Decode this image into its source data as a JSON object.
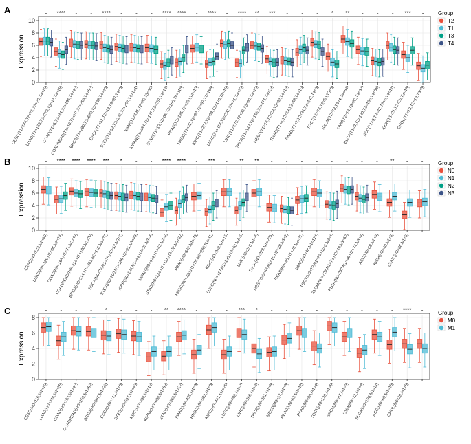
{
  "chart_data": [
    {
      "panel": "A",
      "type": "boxplot",
      "ylabel": "Expression",
      "ylim": [
        0,
        10
      ],
      "yticks": [
        0,
        2,
        4,
        6,
        8,
        10
      ],
      "legend": {
        "title": "Group",
        "items": [
          "T2",
          "T1",
          "T3",
          "T4"
        ],
        "colors": [
          "#e8503c",
          "#4dbbd5",
          "#00a087",
          "#3c5488"
        ]
      },
      "categories": [
        {
          "label": "CESC(T1=144,T2=71,T3=20,T4=10)",
          "sig": "-",
          "meds": [
            6.6,
            6.7,
            6.7,
            6.5
          ]
        },
        {
          "label": "LUAD(T1=169,T2=276,T3=47,T4=18)",
          "sig": "****",
          "meds": [
            5.0,
            4.7,
            4.5,
            5.3
          ]
        },
        {
          "label": "COAD(T1=6,T2=44,T3=196,T4=40)",
          "sig": "-",
          "meds": [
            6.4,
            6.2,
            6.1,
            6.0
          ]
        },
        {
          "label": "COADREAD(T1=10,T2=57,T3=259,T4=60)",
          "sig": "-",
          "meds": [
            6.2,
            6.0,
            6.0,
            5.9
          ]
        },
        {
          "label": "BRCA(T1=280,T2=630,T3=138,T4=40)",
          "sig": "****",
          "meds": [
            6.1,
            5.6,
            5.5,
            5.3
          ]
        },
        {
          "label": "ESCA(T1=51,T2=43,T3=87,T4=6)",
          "sig": "-",
          "meds": [
            5.8,
            5.6,
            5.5,
            5.4
          ]
        },
        {
          "label": "STES(T1=62,T2=132,T3=297,T4=121)",
          "sig": "-",
          "meds": [
            5.7,
            5.6,
            5.5,
            5.4
          ]
        },
        {
          "label": "KIRP(T1=191,T2=33,T3=60)",
          "sig": "-",
          "meds": [
            5.6,
            5.5,
            5.3
          ]
        },
        {
          "label": "KIPAN(T1=484,T2=127,T3=257,T4=14)",
          "sig": "****",
          "meds": [
            3.0,
            2.7,
            3.2,
            3.6
          ]
        },
        {
          "label": "STAD(T1=12,T2=89,T3=180,T4=115)",
          "sig": "****",
          "meds": [
            3.2,
            3.4,
            4.0,
            5.4
          ]
        },
        {
          "label": "PRAD(T2=185,T3=290,T4=10)",
          "sig": "-",
          "meds": [
            5.5,
            5.7,
            5.4
          ]
        },
        {
          "label": "HNSC(T1=22,T2=87,T3=97,T4=189)",
          "sig": "****",
          "meds": [
            3.0,
            3.3,
            3.4,
            4.2
          ]
        },
        {
          "label": "KIRC(T1=272,T2=68,T3=176,T4=10)",
          "sig": "-",
          "meds": [
            6.3,
            6.1,
            6.3,
            6.0
          ]
        },
        {
          "label": "LUSC(T1=114,T2=292,T3=71,T4=23)",
          "sig": "****",
          "meds": [
            3.2,
            3.1,
            5.2,
            5.7
          ]
        },
        {
          "label": "LIHC(T1=179,T2=96,T3=80,T4=13)",
          "sig": "**",
          "meds": [
            6.0,
            5.9,
            5.8,
            5.5
          ]
        },
        {
          "label": "THCA(T1=142,T2=166,T3=171,T4=23)",
          "sig": "***",
          "meds": [
            3.8,
            3.4,
            3.2,
            3.3
          ]
        },
        {
          "label": "MESO(T1=14,T2=28,T3=32,T4=13)",
          "sig": "-",
          "meds": [
            3.6,
            3.5,
            3.4,
            3.3
          ]
        },
        {
          "label": "READ(T1=4,T2=13,T3=63,T4=10)",
          "sig": "-",
          "meds": [
            4.9,
            5.3,
            5.6,
            5.2
          ]
        },
        {
          "label": "PAAD(T1=7,T2=24,T3=142,T4=3)",
          "sig": "-",
          "meds": [
            6.5,
            6.2,
            6.1,
            5.0
          ]
        },
        {
          "label": "TGCT(T1=76,T2=50,T3=8)",
          "sig": "*",
          "meds": [
            4.2,
            3.3,
            3.0
          ]
        },
        {
          "label": "SKCM(T2=78,T3=4,T4=84)",
          "sig": "**",
          "meds": [
            7.0,
            6.6,
            6.3
          ]
        },
        {
          "label": "UVM(T2=14,T3=32,T4=37)",
          "sig": "-",
          "meds": [
            5.3,
            5.1,
            5.0
          ]
        },
        {
          "label": "BLCA(T1=3,T2=120,T3=196,T4=58)",
          "sig": "-",
          "meds": [
            3.5,
            3.4,
            3.3,
            3.4
          ]
        },
        {
          "label": "ACC(T1=9,T2=42,T3=6,T4=17)",
          "sig": "-",
          "meds": [
            6.0,
            5.7,
            5.3,
            5.2
          ]
        },
        {
          "label": "KICH(T1=21,T2=25,T3=18)",
          "sig": "***",
          "meds": [
            4.5,
            4.0,
            5.2
          ]
        },
        {
          "label": "CHOL(T1=18,T2=12,T3=5)",
          "sig": "-",
          "meds": [
            2.7,
            2.3,
            2.8
          ]
        }
      ]
    },
    {
      "panel": "B",
      "type": "boxplot",
      "ylabel": "Expression",
      "ylim": [
        0,
        10
      ],
      "yticks": [
        0,
        2,
        4,
        6,
        8,
        10
      ],
      "legend": {
        "title": "Group",
        "items": [
          "N0",
          "N1",
          "N2",
          "N3"
        ],
        "colors": [
          "#e8503c",
          "#4dbbd5",
          "#00a087",
          "#3c5488"
        ]
      },
      "categories": [
        {
          "label": "CESC(N0=133,N1=60)",
          "sig": "-",
          "meds": [
            6.6,
            6.5
          ]
        },
        {
          "label": "LUAD(N0=329,N1=96,N2=74)",
          "sig": "****",
          "meds": [
            5.0,
            5.1,
            5.6
          ]
        },
        {
          "label": "COAD(N0=166,N1=71,N2=49)",
          "sig": "****",
          "meds": [
            6.3,
            6.0,
            5.9
          ]
        },
        {
          "label": "COADREAD(N0=214,N1=100,N2=70)",
          "sig": "****",
          "meds": [
            6.2,
            6.1,
            6.0
          ]
        },
        {
          "label": "BRCA(N0=514,N1=361,N2=118,N3=77)",
          "sig": "***",
          "meds": [
            6.0,
            5.9,
            5.7,
            5.6
          ]
        },
        {
          "label": "ESCA(N0=76,N1=78,N2=13,N3=7)",
          "sig": "*",
          "meds": [
            5.6,
            5.5,
            5.4,
            5.3
          ]
        },
        {
          "label": "STES(N0=200,N1=186,N2=91,N3=89)",
          "sig": "-",
          "meds": [
            5.7,
            5.6,
            5.5,
            5.4
          ]
        },
        {
          "label": "KIRP(N0=124,N1=44,N2=25,N3=4)",
          "sig": "-",
          "meds": [
            5.4,
            5.3,
            5.2,
            5.1
          ]
        },
        {
          "label": "KIPAN(N0=424,N1=43,N2=6)",
          "sig": "****",
          "meds": [
            2.9,
            3.8,
            4.0
          ]
        },
        {
          "label": "STAD(N0=124,N1=111,N2=78,N3=82)",
          "sig": "****",
          "meds": [
            3.2,
            4.3,
            5.0,
            5.3
          ]
        },
        {
          "label": "PRAD(N0=343,N1=79)",
          "sig": "-",
          "meds": [
            5.5,
            5.6
          ]
        },
        {
          "label": "HNSC(N0=220,N1=78,N2=205,N3=11)",
          "sig": "***",
          "meds": [
            3.0,
            3.4,
            4.0,
            4.4
          ]
        },
        {
          "label": "KIRC(N0=240,N1=15)",
          "sig": "-",
          "meds": [
            6.2,
            6.2
          ]
        },
        {
          "label": "LUSC(N0=317,N1=130,N2=40,N3=5)",
          "sig": "**",
          "meds": [
            3.2,
            4.0,
            4.5,
            5.4
          ]
        },
        {
          "label": "LIHC(N0=250,N1=4)",
          "sig": "**",
          "meds": [
            6.0,
            6.2
          ]
        },
        {
          "label": "THCA(N0=229,N1=225)",
          "sig": "-",
          "meds": [
            3.7,
            3.6
          ]
        },
        {
          "label": "MESO(N0=44,N1=10,N2=28,N3=2)",
          "sig": "-",
          "meds": [
            3.5,
            3.4,
            3.3,
            3.2
          ]
        },
        {
          "label": "READ(N0=48,N1=29,N2=21)",
          "sig": "-",
          "meds": [
            4.9,
            5.1,
            5.2
          ]
        },
        {
          "label": "PAAD(N0=48,N1=124)",
          "sig": "-",
          "meds": [
            6.2,
            6.0
          ]
        },
        {
          "label": "TGCT(N0=79,N1=23,N2=3,N3=4)",
          "sig": "-",
          "meds": [
            4.2,
            4.1,
            4.0,
            4.3
          ]
        },
        {
          "label": "SKCM(N0=228,N1=73,N2=49,N3=62)",
          "sig": "-",
          "meds": [
            6.8,
            6.6,
            6.5,
            6.6
          ]
        },
        {
          "label": "BLCA(N0=237,N1=46,N2=74,N3=8)",
          "sig": "-",
          "meds": [
            5.5,
            5.2,
            5.0,
            5.3
          ]
        },
        {
          "label": "ACC(N0=68,N1=9)",
          "sig": "-",
          "meds": [
            5.8,
            5.4
          ]
        },
        {
          "label": "KICH(N0=40,N1=3)",
          "sig": "**",
          "meds": [
            4.5,
            5.5
          ]
        },
        {
          "label": "CHOL(N0=26,N1=5)",
          "sig": "-",
          "meds": [
            2.5,
            4.5
          ]
        },
        {
          "label": "",
          "sig": "-",
          "meds": [
            4.4,
            4.6
          ]
        }
      ]
    },
    {
      "panel": "C",
      "type": "boxplot",
      "ylabel": "Expression",
      "ylim": [
        0,
        8
      ],
      "yticks": [
        0,
        2,
        4,
        6,
        8
      ],
      "legend": {
        "title": "Group",
        "items": [
          "M0",
          "M1"
        ],
        "colors": [
          "#e8503c",
          "#4dbbd5"
        ]
      },
      "categories": [
        {
          "label": "CESC(M0=116,M1=10)",
          "sig": "-",
          "meds": [
            6.7,
            6.8
          ]
        },
        {
          "label": "LUAD(M0=344,M1=25)",
          "sig": "-",
          "meds": [
            5.0,
            5.5
          ]
        },
        {
          "label": "COAD(M0=193,M1=40)",
          "sig": "-",
          "meds": [
            6.3,
            6.2
          ]
        },
        {
          "label": "COADREAD(M0=256,M1=52)",
          "sig": "-",
          "meds": [
            6.2,
            6.0
          ]
        },
        {
          "label": "BRCA(M0=907,M1=22)",
          "sig": "*",
          "meds": [
            5.7,
            5.6
          ]
        },
        {
          "label": "ESCA(M0=141,M1=6)",
          "sig": "-",
          "meds": [
            5.9,
            5.8
          ]
        },
        {
          "label": "STES(M0=507,M1=43)",
          "sig": "-",
          "meds": [
            5.6,
            5.5
          ]
        },
        {
          "label": "KIRP(M0=208,M1=12)",
          "sig": "-",
          "meds": [
            2.9,
            3.6
          ]
        },
        {
          "label": "KIPAN(M0=698,M1=93)",
          "sig": "**",
          "meds": [
            3.0,
            3.6
          ]
        },
        {
          "label": "STAD(M0=366,M1=27)",
          "sig": "****",
          "meds": [
            5.5,
            5.7
          ]
        },
        {
          "label": "PRAD(M0=455,M1=3)",
          "sig": "-",
          "meds": [
            3.2,
            3.8
          ]
        },
        {
          "label": "HNSC(M0=502,M1=5)",
          "sig": "-",
          "meds": [
            6.4,
            6.7
          ]
        },
        {
          "label": "KIRC(M0=441,M1=79)",
          "sig": "-",
          "meds": [
            3.2,
            3.6
          ]
        },
        {
          "label": "LUSC(M0=408,M1=7)",
          "sig": "***",
          "meds": [
            6.0,
            5.8
          ]
        },
        {
          "label": "LIHC(M0=266,M1=4)",
          "sig": "*",
          "meds": [
            4.0,
            3.3
          ]
        },
        {
          "label": "THCA(M0=281,M1=9)",
          "sig": "-",
          "meds": [
            3.5,
            3.6
          ]
        },
        {
          "label": "MESO(M0=57,M1=3)",
          "sig": "-",
          "meds": [
            5.1,
            5.3
          ]
        },
        {
          "label": "READ(M0=63,M1=12)",
          "sig": "-",
          "meds": [
            6.3,
            6.0
          ]
        },
        {
          "label": "PAAD(M0=80,M1=4)",
          "sig": "-",
          "meds": [
            4.3,
            4.0
          ]
        },
        {
          "label": "TGCT(M0=126,M1=8)",
          "sig": "-",
          "meds": [
            6.9,
            6.7
          ]
        },
        {
          "label": "SKCM(M0=87,M1=3)",
          "sig": "-",
          "meds": [
            5.5,
            6.0
          ]
        },
        {
          "label": "UVM(M0=72,M1=4)",
          "sig": "-",
          "meds": [
            3.4,
            3.8
          ]
        },
        {
          "label": "BLCA(M0=196,M1=11)",
          "sig": "-",
          "meds": [
            5.8,
            5.5
          ]
        },
        {
          "label": "ACC(M0=60,M1=15)",
          "sig": "-",
          "meds": [
            4.5,
            6.1
          ]
        },
        {
          "label": "CHOL(M0=28,M1=5)",
          "sig": "****",
          "meds": [
            4.6,
            3.9
          ]
        },
        {
          "label": "",
          "sig": "-",
          "meds": [
            4.6,
            4.0
          ]
        }
      ]
    }
  ]
}
